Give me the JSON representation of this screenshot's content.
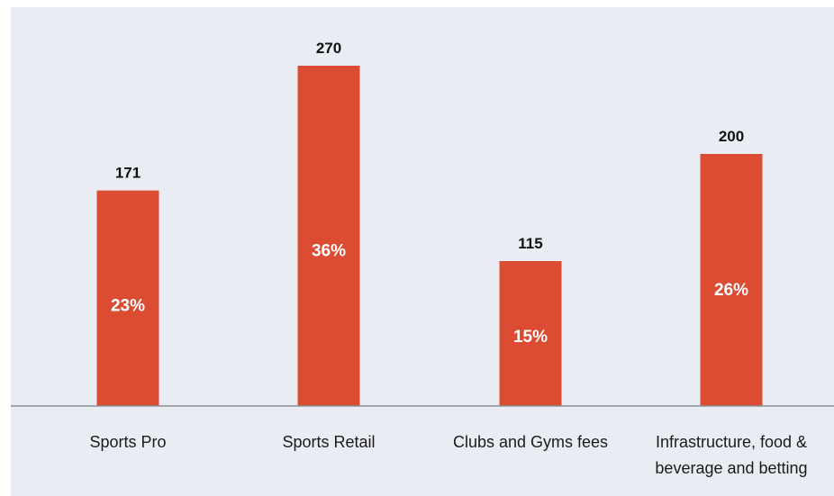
{
  "chart_data": {
    "type": "bar",
    "categories": [
      [
        "Sports Pro"
      ],
      [
        "Sports Retail"
      ],
      [
        "Clubs and Gyms fees"
      ],
      [
        "Infrastructure, food &",
        "beverage and betting"
      ]
    ],
    "values": [
      171,
      270,
      115,
      200
    ],
    "percent_labels": [
      "23%",
      "36%",
      "15%",
      "26%"
    ],
    "value_labels": [
      "171",
      "270",
      "115",
      "200"
    ],
    "ylim": [
      0,
      300
    ],
    "grid": false,
    "legend": "none",
    "colors": {
      "bar": "#db4c33",
      "background": "#e9edf3",
      "axis": "#8a8f96"
    }
  }
}
